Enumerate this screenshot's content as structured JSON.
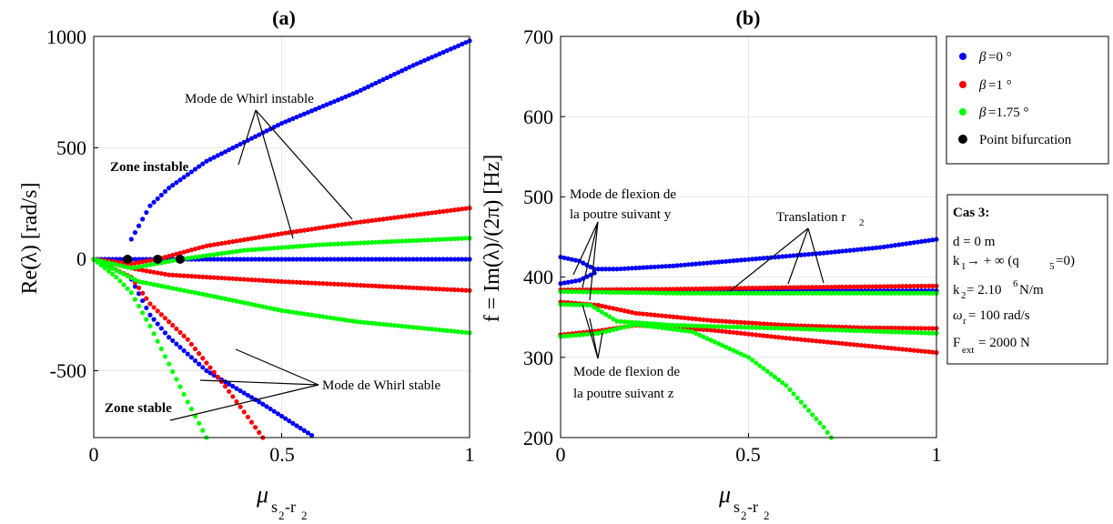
{
  "colors": {
    "blue": "#0000ff",
    "red": "#ff0000",
    "green": "#00ff00",
    "black": "#000000",
    "grid": "#e6e6e6"
  },
  "legend": {
    "items": [
      {
        "beta": "β",
        "text": "=0 °",
        "color": "#0000ff"
      },
      {
        "beta": "β",
        "text": "=1 °",
        "color": "#ff0000"
      },
      {
        "beta": "β",
        "text": "=1.75 °",
        "color": "#00ff00"
      },
      {
        "beta": "",
        "text": "Point bifurcation",
        "color": "#000000"
      }
    ]
  },
  "info_box": {
    "title": "Cas 3:",
    "line_d": "d = 0 m",
    "k1_main": "k",
    "k1_sub": "1",
    "k1_rest": " → + ∞ (q",
    "k1_sub2": "5",
    "k1_end": "=0)",
    "k2_main": "k",
    "k2_sub": "2",
    "k2_rest": " = 2.10",
    "k2_sup": "6",
    "k2_end": " N/m",
    "w_main": "ω",
    "w_sub": "r",
    "w_rest": " = 100 rad/s",
    "f_main": "F",
    "f_sub": "ext",
    "f_rest": " = 2000 N"
  },
  "chart_data": [
    {
      "type": "scatter",
      "panel_label": "(a)",
      "ylabel": "Re(λ) [rad/s]",
      "xlabel_main": "μ",
      "xlabel_sub": "s",
      "xlabel_sub2": "2",
      "xlabel_sub_dash": "-r",
      "xlabel_sub3": "2",
      "xlim": [
        0,
        1
      ],
      "ylim": [
        -800,
        1000
      ],
      "xticks": [
        "0",
        "0.5",
        "1"
      ],
      "yticks": [
        "-500",
        "0",
        "500",
        "1000"
      ],
      "grid": true,
      "annotations": {
        "whirl_instable": "Mode de Whirl instable",
        "whirl_stable": "Mode de Whirl stable",
        "zone_instable": "Zone instable",
        "zone_stable": "Zone stable"
      },
      "bifurcation_points": [
        [
          0.09,
          0
        ],
        [
          0.17,
          0
        ],
        [
          0.23,
          0
        ]
      ],
      "series": [
        {
          "name": "β=0 °",
          "color": "#0000ff",
          "branches": [
            {
              "points": [
                [
                  0,
                  0
                ],
                [
                  0.09,
                  0
                ],
                [
                  0.2,
                  0
                ],
                [
                  0.5,
                  0
                ],
                [
                  1,
                  0
                ]
              ]
            },
            {
              "points": [
                [
                  0.09,
                  0
                ],
                [
                  0.1,
                  90
                ],
                [
                  0.15,
                  240
                ],
                [
                  0.2,
                  320
                ],
                [
                  0.3,
                  440
                ],
                [
                  0.5,
                  610
                ],
                [
                  0.7,
                  750
                ],
                [
                  0.85,
                  870
                ],
                [
                  1,
                  980
                ]
              ]
            },
            {
              "points": [
                [
                  0,
                  0
                ],
                [
                  0.09,
                  0
                ],
                [
                  0.1,
                  -90
                ],
                [
                  0.15,
                  -250
                ],
                [
                  0.2,
                  -350
                ],
                [
                  0.3,
                  -500
                ],
                [
                  0.45,
                  -650
                ],
                [
                  0.58,
                  -790
                ]
              ]
            }
          ]
        },
        {
          "name": "β=1 °",
          "color": "#ff0000",
          "branches": [
            {
              "points": [
                [
                  0,
                  0
                ],
                [
                  0.1,
                  -20
                ],
                [
                  0.17,
                  0
                ],
                [
                  0.3,
                  60
                ],
                [
                  0.5,
                  115
                ],
                [
                  0.7,
                  165
                ],
                [
                  1,
                  230
                ]
              ]
            },
            {
              "points": [
                [
                  0,
                  0
                ],
                [
                  0.1,
                  -40
                ],
                [
                  0.2,
                  -70
                ],
                [
                  0.5,
                  -100
                ],
                [
                  0.75,
                  -120
                ],
                [
                  1,
                  -140
                ]
              ]
            },
            {
              "points": [
                [
                  0,
                  0
                ],
                [
                  0.1,
                  -80
                ],
                [
                  0.15,
                  -200
                ],
                [
                  0.25,
                  -360
                ],
                [
                  0.35,
                  -570
                ],
                [
                  0.45,
                  -800
                ]
              ]
            }
          ]
        },
        {
          "name": "β=1.75 °",
          "color": "#00ff00",
          "branches": [
            {
              "points": [
                [
                  0,
                  0
                ],
                [
                  0.1,
                  -40
                ],
                [
                  0.23,
                  0
                ],
                [
                  0.4,
                  40
                ],
                [
                  0.6,
                  65
                ],
                [
                  0.8,
                  80
                ],
                [
                  1,
                  95
                ]
              ]
            },
            {
              "points": [
                [
                  0,
                  0
                ],
                [
                  0.12,
                  -100
                ],
                [
                  0.3,
                  -160
                ],
                [
                  0.5,
                  -230
                ],
                [
                  0.7,
                  -280
                ],
                [
                  1,
                  -330
                ]
              ]
            },
            {
              "points": [
                [
                  0,
                  0
                ],
                [
                  0.06,
                  -80
                ],
                [
                  0.1,
                  -150
                ],
                [
                  0.15,
                  -300
                ],
                [
                  0.2,
                  -470
                ],
                [
                  0.25,
                  -640
                ],
                [
                  0.3,
                  -800
                ]
              ]
            }
          ]
        }
      ]
    },
    {
      "type": "scatter",
      "panel_label": "(b)",
      "ylabel": "f = Im(λ)/(2π) [Hz]",
      "xlabel_main": "μ",
      "xlabel_sub": "s",
      "xlabel_sub2": "2",
      "xlabel_sub_dash": "-r",
      "xlabel_sub3": "2",
      "xlim": [
        0,
        1
      ],
      "ylim": [
        200,
        700
      ],
      "xticks": [
        "0",
        "0.5",
        "1"
      ],
      "yticks": [
        "200",
        "300",
        "400",
        "500",
        "600",
        "700"
      ],
      "grid": true,
      "annotations": {
        "flexion_y_1": "Mode de flexion de",
        "flexion_y_2": "la poutre suivant y",
        "translation": "Translation r",
        "translation_sub": "2",
        "flexion_z_1": "Mode de flexion de",
        "flexion_z_2": "la poutre suivant z"
      },
      "series": [
        {
          "name": "β=0 °",
          "color": "#0000ff",
          "branches": [
            {
              "points": [
                [
                  0,
                  425
                ],
                [
                  0.05,
                  420
                ],
                [
                  0.09,
                  410
                ],
                [
                  0.15,
                  410
                ],
                [
                  0.3,
                  414
                ],
                [
                  0.5,
                  422
                ],
                [
                  0.7,
                  430
                ],
                [
                  0.85,
                  437
                ],
                [
                  1,
                  447
                ]
              ]
            },
            {
              "points": [
                [
                  0,
                  392
                ],
                [
                  0.05,
                  396
                ],
                [
                  0.09,
                  405
                ]
              ]
            },
            {
              "points": [
                [
                  0.09,
                  383
                ],
                [
                  0.3,
                  383
                ],
                [
                  0.6,
                  383
                ],
                [
                  1,
                  383
                ]
              ]
            }
          ]
        },
        {
          "name": "β=1 °",
          "color": "#ff0000",
          "branches": [
            {
              "points": [
                [
                  0,
                  384
                ],
                [
                  0.3,
                  385
                ],
                [
                  0.6,
                  387
                ],
                [
                  1,
                  389
                ]
              ]
            },
            {
              "points": [
                [
                  0,
                  369
                ],
                [
                  0.1,
                  365
                ],
                [
                  0.2,
                  355
                ],
                [
                  0.4,
                  346
                ],
                [
                  0.6,
                  340
                ],
                [
                  0.8,
                  337
                ],
                [
                  1,
                  336
                ]
              ]
            },
            {
              "points": [
                [
                  0,
                  328
                ],
                [
                  0.1,
                  333
                ],
                [
                  0.2,
                  340
                ],
                [
                  0.4,
                  334
                ],
                [
                  0.6,
                  324
                ],
                [
                  0.8,
                  315
                ],
                [
                  1,
                  306
                ]
              ]
            }
          ]
        },
        {
          "name": "β=1.75 °",
          "color": "#00ff00",
          "branches": [
            {
              "points": [
                [
                  0,
                  382
                ],
                [
                  0.3,
                  380
                ],
                [
                  0.6,
                  380
                ],
                [
                  1,
                  380
                ]
              ]
            },
            {
              "points": [
                [
                  0,
                  366
                ],
                [
                  0.08,
                  365
                ],
                [
                  0.15,
                  345
                ],
                [
                  0.3,
                  340
                ],
                [
                  0.6,
                  336
                ],
                [
                  1,
                  330
                ]
              ]
            },
            {
              "points": [
                [
                  0,
                  326
                ],
                [
                  0.1,
                  330
                ],
                [
                  0.2,
                  341
                ],
                [
                  0.35,
                  332
                ],
                [
                  0.5,
                  300
                ],
                [
                  0.6,
                  265
                ],
                [
                  0.7,
                  213
                ],
                [
                  0.72,
                  200
                ]
              ]
            }
          ]
        }
      ]
    }
  ]
}
